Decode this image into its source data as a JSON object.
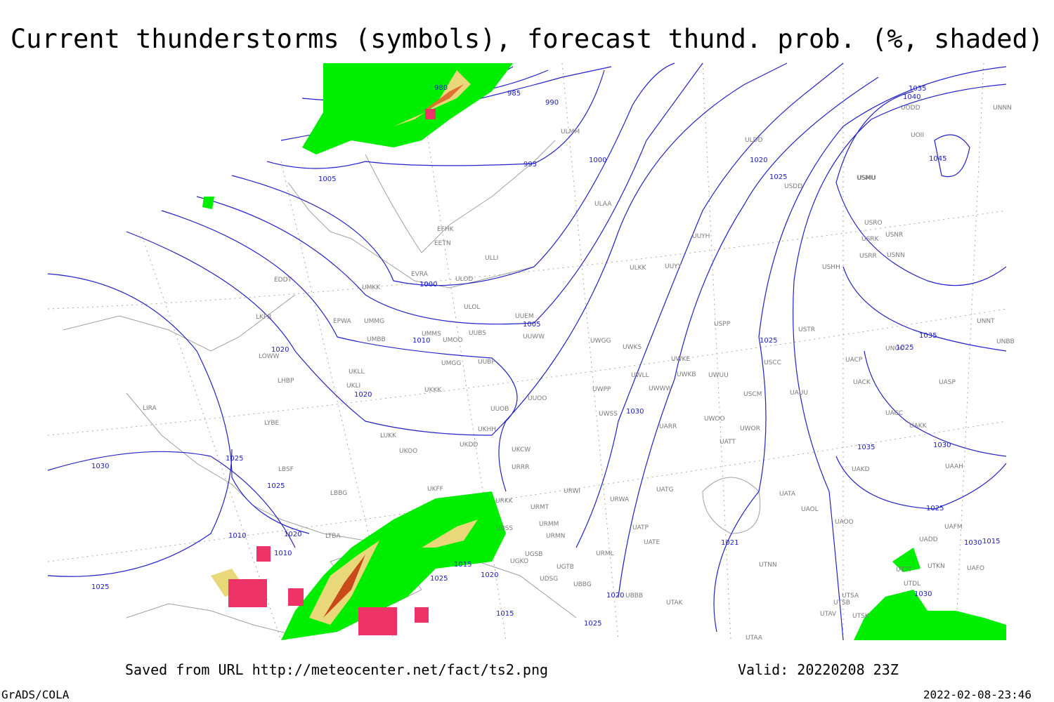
{
  "title": "Current thunderstorms (symbols), forecast thund. prob. (%, shaded)",
  "footer": {
    "source": "Saved from URL http://meteocenter.net/fact/ts2.png",
    "valid": "Valid: 20220208 23Z",
    "software": "GrADS/COLA",
    "timestamp": "2022-02-08-23:46"
  },
  "isobar_labels": [
    "980",
    "985",
    "990",
    "995",
    "1000",
    "1005",
    "1000",
    "1005",
    "1010",
    "1020",
    "1025",
    "1035",
    "1040",
    "1045",
    "1035",
    "1025",
    "1025",
    "1020",
    "1020",
    "1030",
    "1035",
    "1030",
    "1030",
    "1025",
    "1025",
    "1025",
    "1021",
    "1030",
    "1015",
    "1020",
    "1010",
    "1010",
    "1015",
    "1020",
    "1025",
    "1015",
    "1020",
    "1025",
    "1025",
    "1030"
  ],
  "stations": [
    "ULMM",
    "ULDD",
    "USDD",
    "USMU",
    "ULAA",
    "ULLI",
    "EFHK",
    "EETN",
    "EVRA",
    "ULOD",
    "ULOL",
    "EDDT",
    "UMKK",
    "EPWA",
    "UMMG",
    "UUEM",
    "UUWW",
    "UMMS",
    "UMOO",
    "UUBS",
    "UMBB",
    "UUYY",
    "ULKK",
    "UUYH",
    "USRO",
    "USRK",
    "USNR",
    "USRR",
    "USNN",
    "USHH",
    "UWGG",
    "UWKS",
    "UWKE",
    "UWKB",
    "UWUU",
    "USPP",
    "USTR",
    "USCC",
    "UACP",
    "UNOO",
    "UNNT",
    "UNBB",
    "UACK",
    "UASP",
    "UAUU",
    "USCM",
    "UWLL",
    "UWWW",
    "UWPP",
    "UWSS",
    "UARR",
    "UWOO",
    "UWOR",
    "UATT",
    "UACC",
    "UAKK",
    "UAAH",
    "UAKD",
    "URWI",
    "URWA",
    "UATG",
    "UATA",
    "UAOL",
    "UAOO",
    "UATP",
    "UATE",
    "URML",
    "UTNN",
    "UAFO",
    "UTAK",
    "UBBB",
    "UTSB",
    "UTSA",
    "UTAV",
    "UTSK",
    "UTAA",
    "UTDL",
    "UTKN",
    "UADD",
    "UAFM",
    "UTTT",
    "URKK",
    "UKKK",
    "UKLL",
    "UKLI",
    "LKPR",
    "LOWW",
    "LHBP",
    "LIRA",
    "LYBE",
    "LBSF",
    "LUKK",
    "UKHH",
    "UKDD",
    "UKOO",
    "UKCW",
    "URRR",
    "UUOO",
    "UUOB",
    "LBBG",
    "UKFF",
    "LTBA",
    "URMT",
    "URMM",
    "URMN",
    "UBSS",
    "UGSB",
    "UGTB",
    "UDSG",
    "UBBG",
    "UGKO",
    "UMGG",
    "UUBP",
    "USMU",
    "UODD",
    "UOII",
    "UNNN"
  ]
}
